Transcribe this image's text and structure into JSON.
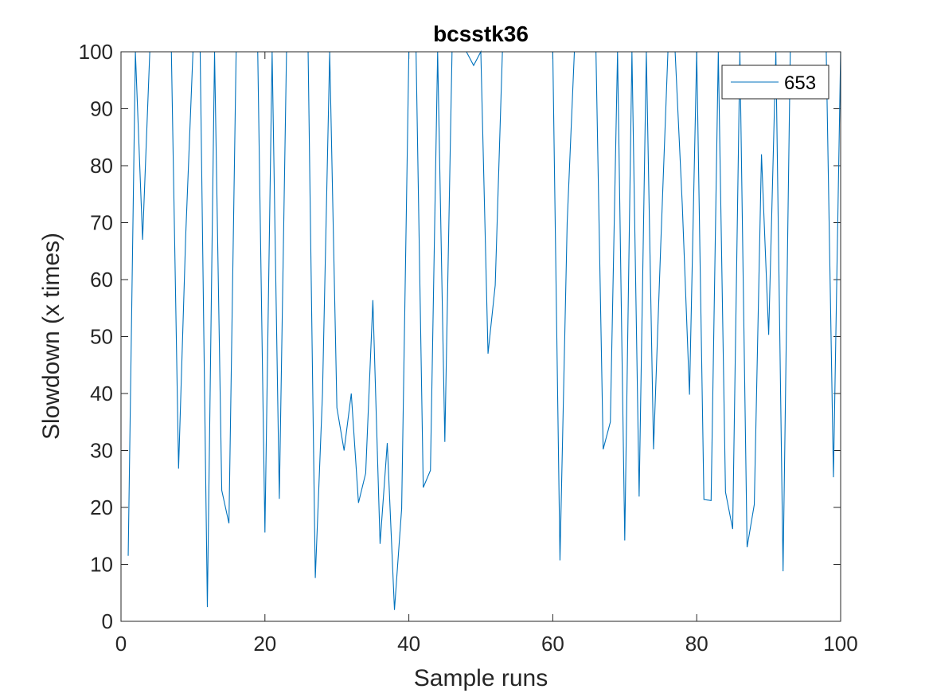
{
  "chart_data": {
    "type": "line",
    "title": "bcsstk36",
    "xlabel": "Sample runs",
    "ylabel": "Slowdown (x times)",
    "xlim": [
      0,
      100
    ],
    "ylim": [
      0,
      100
    ],
    "xticks": [
      0,
      20,
      40,
      60,
      80,
      100
    ],
    "yticks": [
      0,
      10,
      20,
      30,
      40,
      50,
      60,
      70,
      80,
      90,
      100
    ],
    "grid": false,
    "legend_position": "top-right",
    "series": [
      {
        "name": "653",
        "color": "#0072BD",
        "x": [
          1,
          2,
          3,
          4,
          5,
          6,
          7,
          8,
          9,
          10,
          11,
          12,
          13,
          14,
          15,
          16,
          17,
          18,
          19,
          20,
          21,
          22,
          23,
          24,
          25,
          26,
          27,
          28,
          29,
          30,
          31,
          32,
          33,
          34,
          35,
          36,
          37,
          38,
          39,
          40,
          41,
          42,
          43,
          44,
          45,
          46,
          47,
          48,
          49,
          50,
          51,
          52,
          53,
          54,
          55,
          56,
          57,
          58,
          59,
          60,
          61,
          62,
          63,
          64,
          65,
          66,
          67,
          68,
          69,
          70,
          71,
          72,
          73,
          74,
          75,
          76,
          77,
          78,
          79,
          80,
          81,
          82,
          83,
          84,
          85,
          86,
          87,
          88,
          89,
          90,
          91,
          92,
          93,
          94,
          95,
          96,
          97,
          98,
          99,
          100
        ],
        "y": [
          11.5,
          100,
          67,
          100,
          100,
          100,
          100,
          26.8,
          68,
          100,
          100,
          2.5,
          100,
          23,
          17.2,
          100,
          100,
          100,
          100,
          15.6,
          100,
          21.5,
          100,
          100,
          100,
          100,
          7.6,
          40,
          100,
          37.5,
          30,
          40,
          20.8,
          26,
          56.4,
          13.6,
          31.3,
          2,
          19.8,
          100,
          100,
          23.5,
          26.5,
          100,
          31.5,
          100,
          100,
          100,
          97.6,
          100,
          47,
          59,
          100,
          100,
          100,
          100,
          100,
          100,
          100,
          100,
          10.7,
          70,
          100,
          100,
          100,
          100,
          30.2,
          35,
          100,
          14.2,
          100,
          21.9,
          100,
          30.2,
          66,
          100,
          100,
          73,
          39.8,
          100,
          21.4,
          21.2,
          100,
          22.7,
          16.2,
          100,
          13,
          20.5,
          82,
          50.3,
          100,
          8.8,
          100,
          100,
          100,
          100,
          100,
          100,
          25.3,
          100
        ]
      }
    ]
  }
}
